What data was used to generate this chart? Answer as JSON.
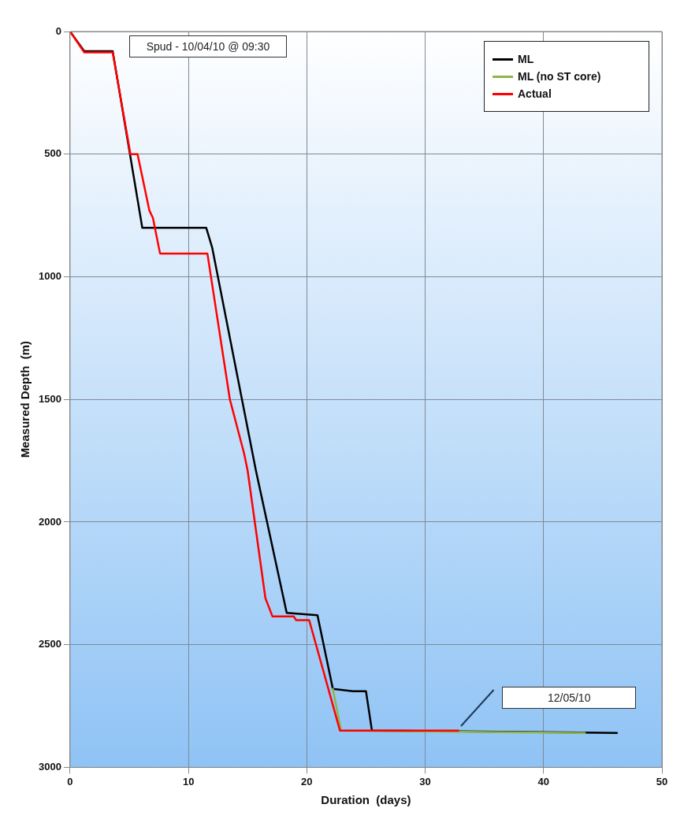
{
  "chart_data": {
    "type": "line",
    "xlabel": "Duration  (days)",
    "ylabel": "Measured Depth  (m)",
    "xlim": [
      0,
      50
    ],
    "xticks": [
      0,
      10,
      20,
      30,
      40,
      50
    ],
    "ylim": [
      3000,
      0
    ],
    "yticks": [
      0,
      500,
      1000,
      1500,
      2000,
      2500,
      3000
    ],
    "grid": true,
    "legend": "top right",
    "marker": "none",
    "line_style": "solid",
    "annotations": [
      "Spud - 10/04/10 @ 09:30",
      "12/05/10"
    ],
    "series": [
      {
        "name": "ML",
        "color": "#000000",
        "x": [
          0,
          1.2,
          3.6,
          6.1,
          11.5,
          12.0,
          15.7,
          18.3,
          20.9,
          22.2,
          23.9,
          25.0,
          25.5,
          46.2
        ],
        "values": [
          0,
          80,
          80,
          800,
          800,
          880,
          1790,
          2370,
          2380,
          2680,
          2690,
          2690,
          2850,
          2860
        ]
      },
      {
        "name": "ML (no ST core)",
        "color": "#8db54b",
        "x": [
          22.2,
          22.9,
          43.5
        ],
        "values": [
          2680,
          2850,
          2860
        ]
      },
      {
        "name": "Actual",
        "color": "#ff0000",
        "x": [
          0,
          1.2,
          3.6,
          5.1,
          5.7,
          6.7,
          7.0,
          7.6,
          11.6,
          13.5,
          14.7,
          15.0,
          16.5,
          17.1,
          18.9,
          19.1,
          20.2,
          22.8,
          32.8
        ],
        "values": [
          0,
          85,
          85,
          500,
          500,
          730,
          760,
          905,
          905,
          1500,
          1720,
          1790,
          2310,
          2385,
          2385,
          2400,
          2400,
          2850,
          2850
        ]
      }
    ]
  }
}
